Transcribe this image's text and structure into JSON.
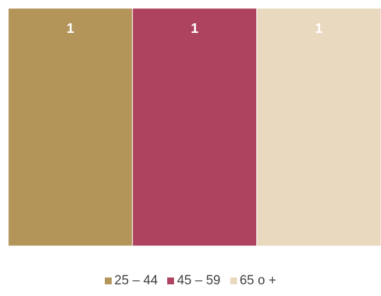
{
  "chart_data": {
    "type": "bar",
    "stacked": true,
    "categories": [
      "",
      "",
      ""
    ],
    "series": [
      {
        "name": "25 – 44",
        "values": [
          1,
          0,
          0
        ],
        "color": "#B3955A"
      },
      {
        "name": "45 – 59",
        "values": [
          0,
          1,
          0
        ],
        "color": "#AD435F"
      },
      {
        "name": "65 o +",
        "values": [
          0,
          0,
          1
        ],
        "color": "#E8D9BF"
      }
    ],
    "data_labels": [
      "1",
      "1",
      "1"
    ],
    "ylim": [
      0,
      1
    ],
    "title": "",
    "xlabel": "",
    "ylabel": "",
    "grid": false,
    "legend_position": "bottom"
  }
}
